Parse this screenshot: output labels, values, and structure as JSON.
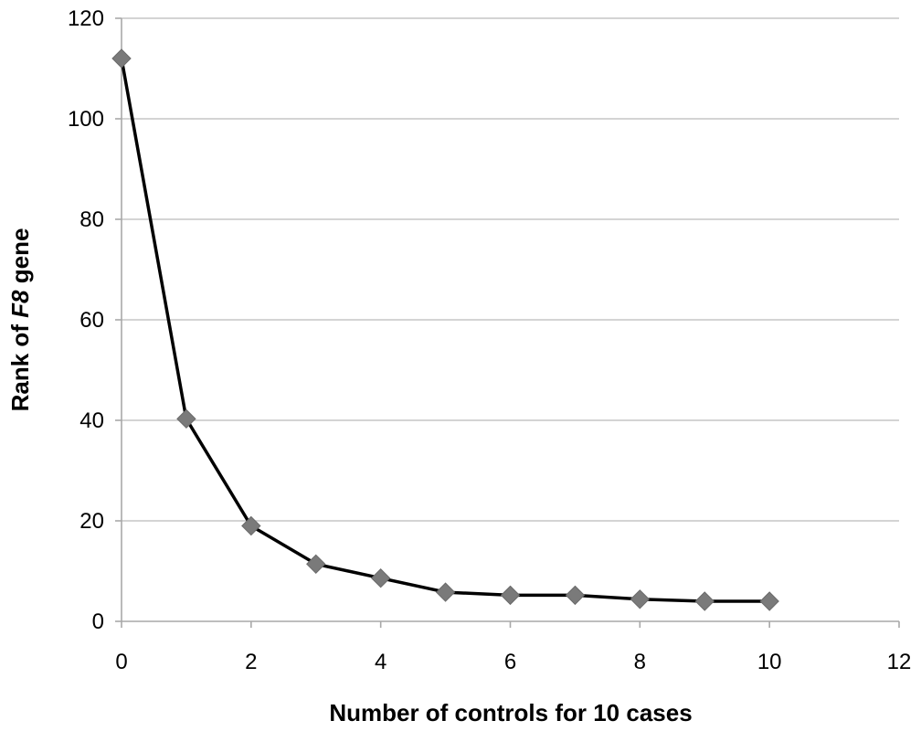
{
  "chart_data": {
    "type": "line",
    "xlabel": "Number of controls for 10 cases",
    "ylabel": {
      "prefix": "Rank of ",
      "italic": "F8",
      "suffix": " gene"
    },
    "xlim": [
      0,
      12
    ],
    "ylim": [
      0,
      120
    ],
    "x_ticks": [
      "0",
      "2",
      "4",
      "6",
      "8",
      "10",
      "12"
    ],
    "y_ticks": [
      "0",
      "20",
      "40",
      "60",
      "80",
      "100",
      "120"
    ],
    "grid": "horizontal",
    "legend": "none",
    "series": [
      {
        "x": [
          0,
          1,
          2,
          3,
          4,
          5,
          6,
          7,
          8,
          9,
          10
        ],
        "y": [
          112,
          40.3,
          19,
          11.4,
          8.6,
          5.8,
          5.2,
          5.2,
          4.4,
          4,
          4
        ],
        "line_color": "#000000",
        "marker_color": "#7a7a7a",
        "marker": "diamond"
      }
    ]
  }
}
